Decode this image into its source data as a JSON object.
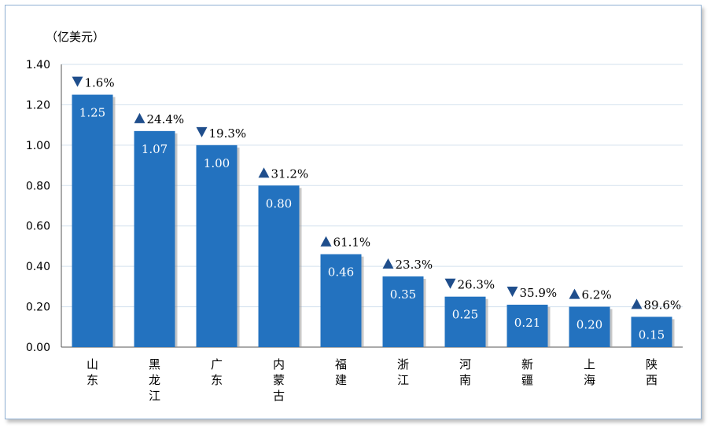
{
  "chart_data": {
    "type": "bar",
    "unit_label": "（亿美元）",
    "categories": [
      "山东",
      "黑龙江",
      "广东",
      "内蒙古",
      "福建",
      "浙江",
      "河南",
      "新疆",
      "上海",
      "陕西"
    ],
    "values": [
      1.25,
      1.07,
      1.0,
      0.8,
      0.46,
      0.35,
      0.25,
      0.21,
      0.2,
      0.15
    ],
    "value_labels": [
      "1.25",
      "1.07",
      "1.00",
      "0.80",
      "0.46",
      "0.35",
      "0.25",
      "0.21",
      "0.20",
      "0.15"
    ],
    "changes": [
      {
        "direction": "down",
        "text": "1.6%"
      },
      {
        "direction": "up",
        "text": "24.4%"
      },
      {
        "direction": "down",
        "text": "19.3%"
      },
      {
        "direction": "up",
        "text": "31.2%"
      },
      {
        "direction": "up",
        "text": "61.1%"
      },
      {
        "direction": "up",
        "text": "23.3%"
      },
      {
        "direction": "down",
        "text": "26.3%"
      },
      {
        "direction": "down",
        "text": "35.9%"
      },
      {
        "direction": "up",
        "text": "6.2%"
      },
      {
        "direction": "up",
        "text": "89.6%"
      }
    ],
    "ylim": [
      0,
      1.4
    ],
    "yticks": [
      "0.00",
      "0.20",
      "0.40",
      "0.60",
      "0.80",
      "1.00",
      "1.20",
      "1.40"
    ],
    "grid": true,
    "colors": {
      "bar": "#2372bf",
      "bar_shadow": "#9a9a9a",
      "grid": "#d3e1ee",
      "marker": "#1f4e8c"
    }
  }
}
